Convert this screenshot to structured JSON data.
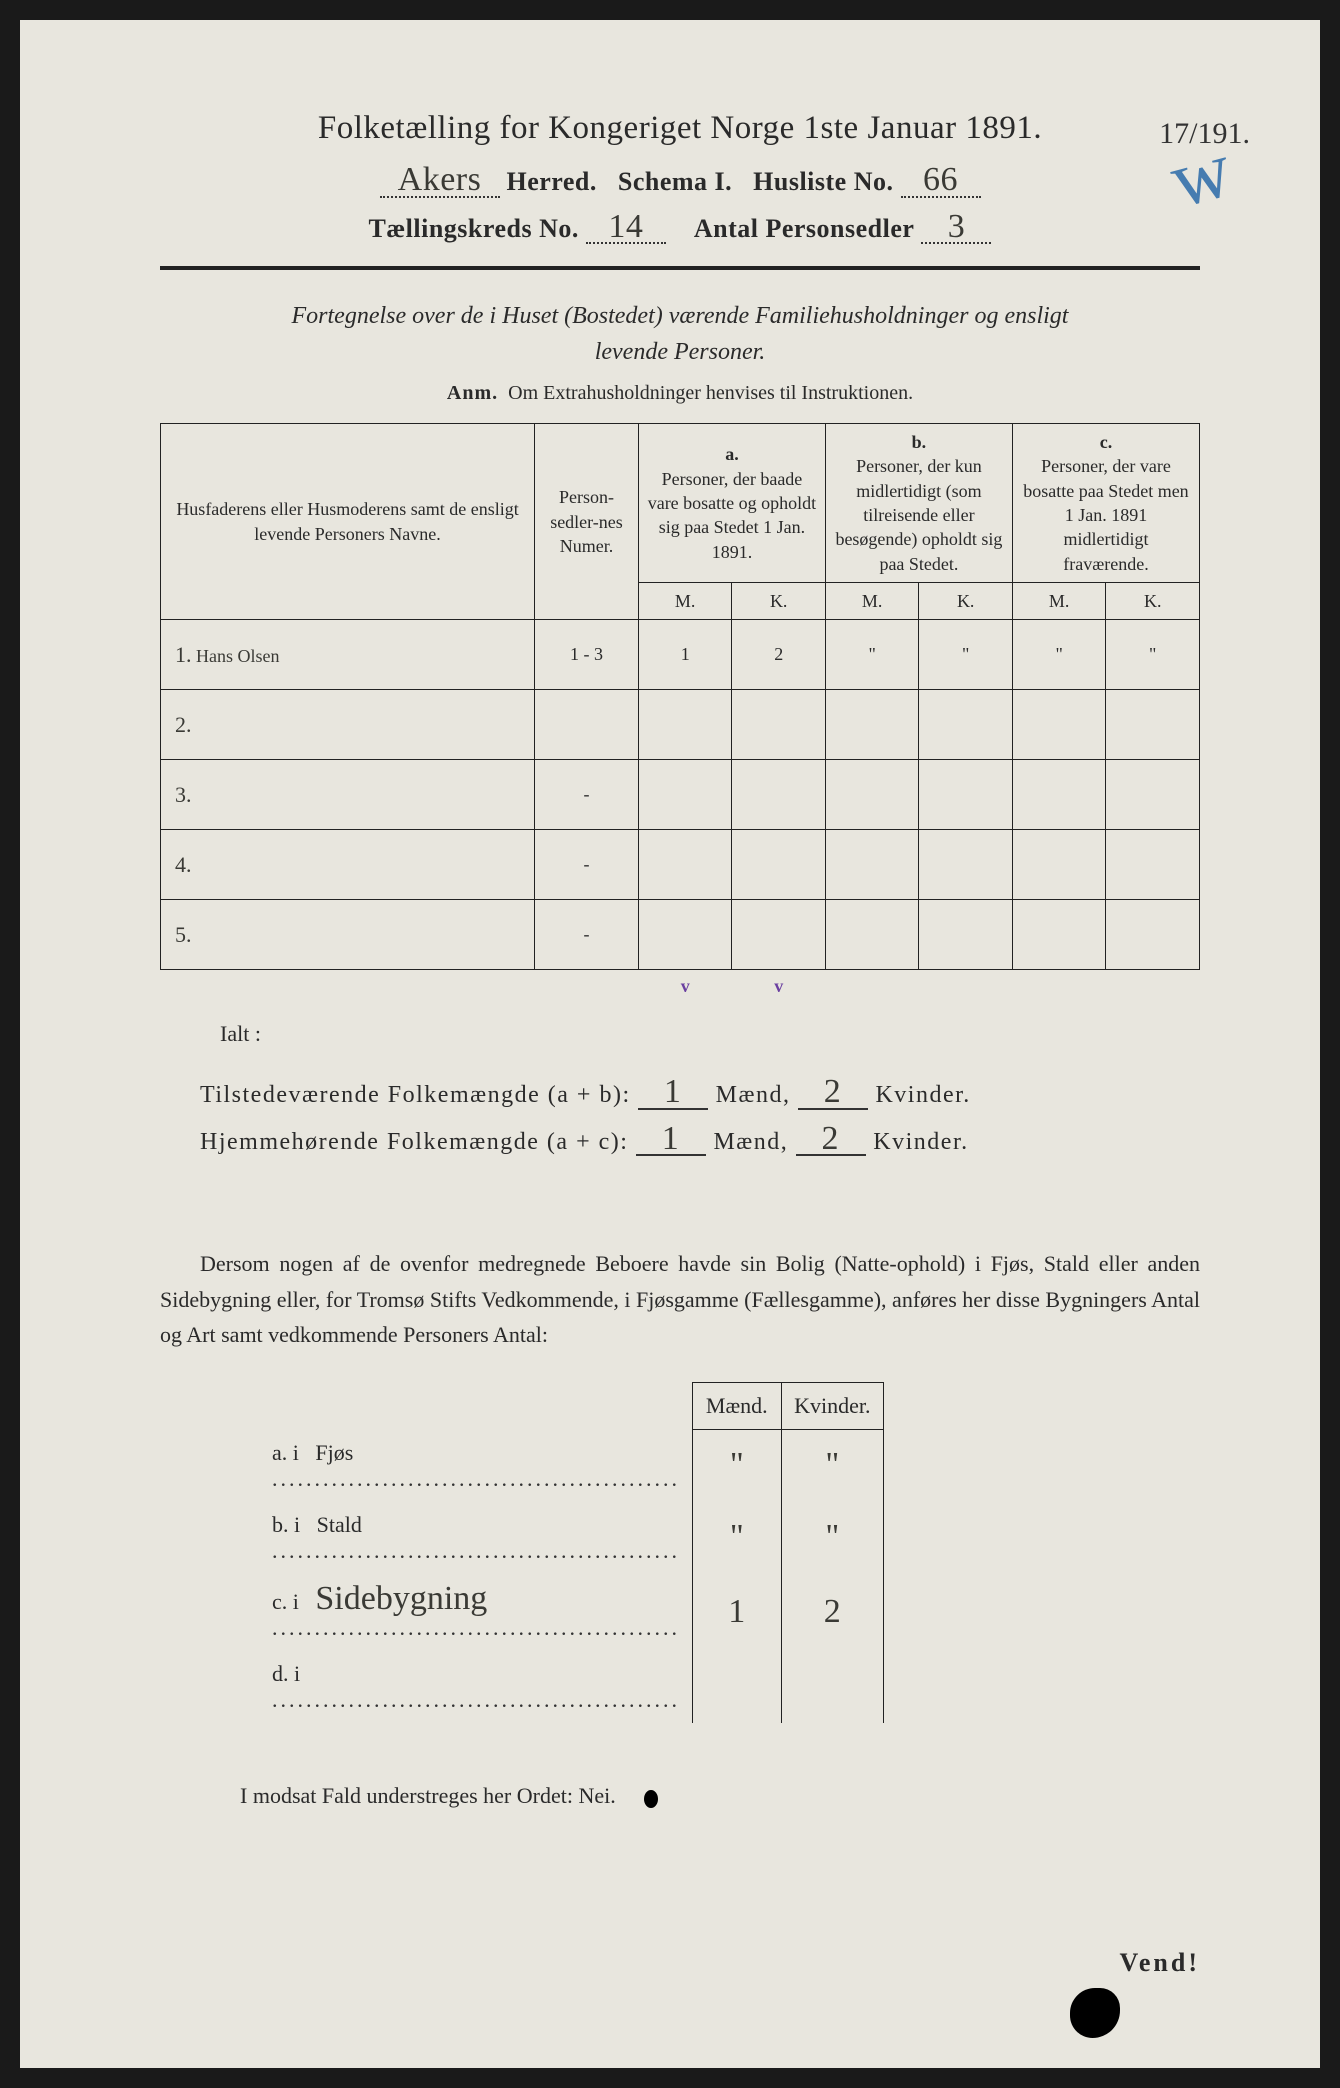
{
  "colors": {
    "paper": "#e8e6de",
    "ink": "#2a2a2a",
    "handwriting": "#3a3a35",
    "blue_pencil": "#2a6aa8",
    "purple_tick": "#6a3fa0",
    "background": "#1a1a1a"
  },
  "typography": {
    "title_fontsize_pt": 25,
    "body_fontsize_pt": 17,
    "handwriting_fontsize_pt": 26,
    "font_family_print": "Georgia serif",
    "font_family_hand": "Brush Script MT cursive"
  },
  "header": {
    "title": "Folketælling for Kongeriget Norge 1ste Januar 1891.",
    "herred_value": "Akers",
    "herred_label": "Herred.",
    "schema_label": "Schema I.",
    "husliste_label": "Husliste No.",
    "husliste_value": "66",
    "kreds_label": "Tællingskreds No.",
    "kreds_value": "14",
    "antal_label": "Antal Personsedler",
    "antal_value": "3",
    "corner_fraction": "17/191."
  },
  "subtitle": {
    "line1": "Fortegnelse over de i Huset (Bostedet) værende Familiehusholdninger og ensligt",
    "line2": "levende Personer.",
    "anm_label": "Anm.",
    "anm_text": "Om Extrahusholdninger henvises til Instruktionen."
  },
  "table": {
    "col_name": "Husfaderens eller Husmoderens samt de ensligt levende Personers Navne.",
    "col_num": "Person-sedler-nes Numer.",
    "col_a_letter": "a.",
    "col_a": "Personer, der baade vare bosatte og opholdt sig paa Stedet 1 Jan. 1891.",
    "col_b_letter": "b.",
    "col_b": "Personer, der kun midlertidigt (som tilreisende eller besøgende) opholdt sig paa Stedet.",
    "col_c_letter": "c.",
    "col_c": "Personer, der vare bosatte paa Stedet men 1 Jan. 1891 midlertidigt fraværende.",
    "sub_m": "M.",
    "sub_k": "K.",
    "rows": [
      {
        "n": "1.",
        "name": "Hans Olsen",
        "num": "1 - 3",
        "a_m": "1",
        "a_k": "2",
        "b_m": "\"",
        "b_k": "\"",
        "c_m": "\"",
        "c_k": "\""
      },
      {
        "n": "2.",
        "name": "",
        "num": "",
        "a_m": "",
        "a_k": "",
        "b_m": "",
        "b_k": "",
        "c_m": "",
        "c_k": ""
      },
      {
        "n": "3.",
        "name": "",
        "num": "-",
        "a_m": "",
        "a_k": "",
        "b_m": "",
        "b_k": "",
        "c_m": "",
        "c_k": ""
      },
      {
        "n": "4.",
        "name": "",
        "num": "-",
        "a_m": "",
        "a_k": "",
        "b_m": "",
        "b_k": "",
        "c_m": "",
        "c_k": ""
      },
      {
        "n": "5.",
        "name": "",
        "num": "-",
        "a_m": "",
        "a_k": "",
        "b_m": "",
        "b_k": "",
        "c_m": "",
        "c_k": ""
      }
    ],
    "tick": "v"
  },
  "totals": {
    "ialt": "Ialt :",
    "line1_label": "Tilstedeværende Folkemængde (a + b):",
    "line1_m": "1",
    "line1_k": "2",
    "line2_label": "Hjemmehørende Folkemængde (a + c):",
    "line2_m": "1",
    "line2_k": "2",
    "maend": "Mænd,",
    "kvinder": "Kvinder."
  },
  "paragraph": "Dersom nogen af de ovenfor medregnede Beboere havde sin Bolig (Natte-ophold) i Fjøs, Stald eller anden Sidebygning eller, for Tromsø Stifts Vedkommende, i Fjøsgamme (Fællesgamme), anføres her disse Bygningers Antal og Art samt vedkommende Personers Antal:",
  "small_table": {
    "head_m": "Mænd.",
    "head_k": "Kvinder.",
    "rows": [
      {
        "key": "a.  i",
        "label": "Fjøs",
        "m": "\"",
        "k": "\""
      },
      {
        "key": "b.  i",
        "label": "Stald",
        "m": "\"",
        "k": "\""
      },
      {
        "key": "c.  i",
        "label": "Sidebygning",
        "m": "1",
        "k": "2",
        "hand": true
      },
      {
        "key": "d.  i",
        "label": "",
        "m": "",
        "k": ""
      }
    ]
  },
  "footer": {
    "line": "I modsat Fald understreges her Ordet: Nei.",
    "vend": "Vend!"
  }
}
